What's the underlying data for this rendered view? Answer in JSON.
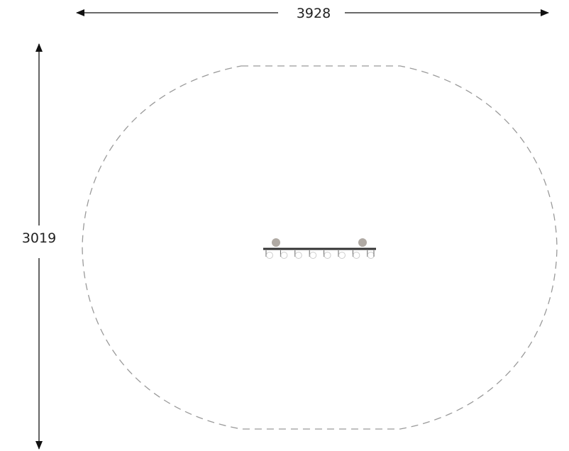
{
  "dimensions": {
    "width_label": "3928",
    "height_label": "3019"
  },
  "colors": {
    "dimension_line": "#111111",
    "safety_zone_outline": "#9a9a9a",
    "beam": "#333333",
    "post_cap": "#b0aaa4",
    "seat": "#cccccc"
  },
  "equipment": {
    "support_posts": 2,
    "seats": 8
  }
}
